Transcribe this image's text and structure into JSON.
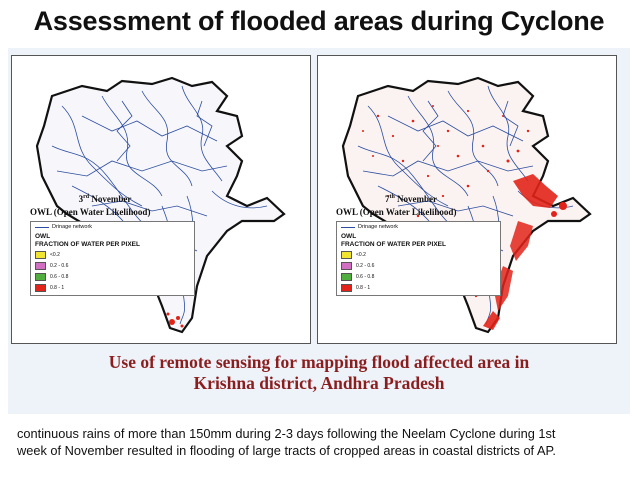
{
  "title": "Assessment of flooded areas during Cyclone",
  "maps": [
    {
      "date_day": "3",
      "date_sup": "rd",
      "date_month": "November",
      "owl_title": "OWL (Open Water Likelihood)",
      "drainage_label": "Drinage network",
      "owl_label": "OWL",
      "fraction_label": "FRACTION OF WATER PER PIXEL",
      "classes": [
        {
          "label": "<0.2",
          "color": "#f0e430"
        },
        {
          "label": "0.2 - 0.6",
          "color": "#d26fc3"
        },
        {
          "label": "0.6 - 0.8",
          "color": "#4fae3d"
        },
        {
          "label": "0.8 - 1",
          "color": "#e2231a"
        }
      ]
    },
    {
      "date_day": "7",
      "date_sup": "th",
      "date_month": "November",
      "owl_title": "OWL (Open Water Likelihood)",
      "drainage_label": "Drinage network",
      "owl_label": "OWL",
      "fraction_label": "FRACTION OF WATER PER PIXEL",
      "classes": [
        {
          "label": "<0.2",
          "color": "#f0e430"
        },
        {
          "label": "0.2 - 0.6",
          "color": "#d26fc3"
        },
        {
          "label": "0.6 - 0.8",
          "color": "#4fae3d"
        },
        {
          "label": "0.8 - 1",
          "color": "#e2231a"
        }
      ]
    }
  ],
  "caption_line1": "Use of remote sensing for mapping flood affected area in",
  "caption_line2": "Krishna district, Andhra Pradesh",
  "body_text": "continuous rains of more than 150mm during 2-3 days following the Neelam Cyclone during 1st week of November resulted in flooding of large tracts of cropped areas in coastal districts of AP.",
  "colors": {
    "drainage": "#2b4ca0",
    "flood": "#e2231a",
    "caption": "#8a1e1e"
  }
}
